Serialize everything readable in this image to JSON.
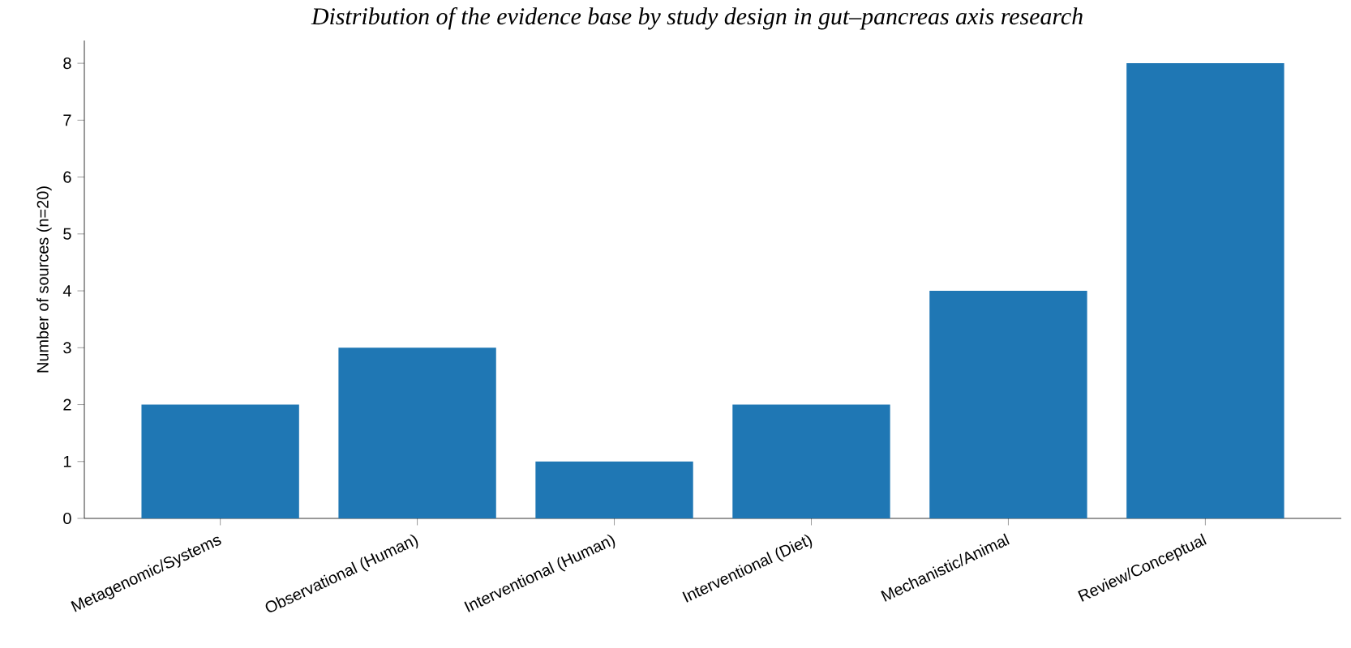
{
  "chart_data": {
    "type": "bar",
    "title": "Distribution of the evidence base by study design in gut–pancreas axis research",
    "ylabel": "Number of sources (n=20)",
    "categories": [
      "Metagenomic/Systems",
      "Observational (Human)",
      "Interventional (Human)",
      "Interventional (Diet)",
      "Mechanistic/Animal",
      "Review/Conceptual"
    ],
    "values": [
      2,
      3,
      1,
      2,
      4,
      8
    ],
    "color": "#1f77b4",
    "ylim": [
      0,
      8.4
    ],
    "yticks": [
      0,
      1,
      2,
      3,
      4,
      5,
      6,
      7,
      8
    ],
    "grid": false
  }
}
